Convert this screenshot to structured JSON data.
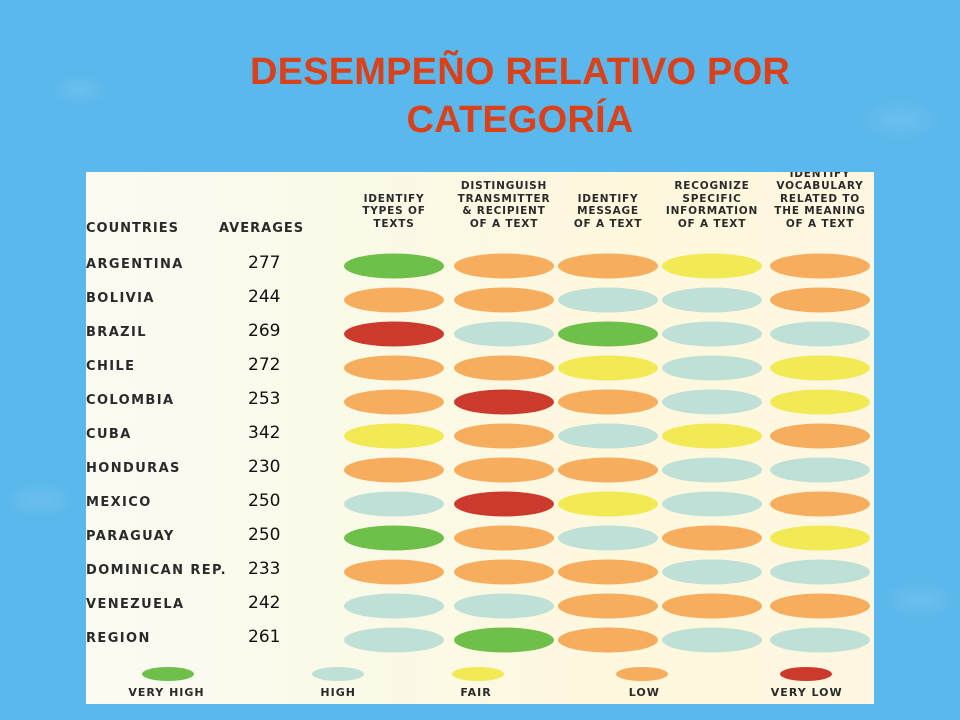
{
  "title_line1": "DESEMPEÑO RELATIVO POR",
  "title_line2": "CATEGORÍA",
  "chart_data": {
    "type": "table",
    "row_header": "COUNTRIES",
    "avg_header": "AVERAGES",
    "columns": [
      "IDENTIFY TYPES OF TEXTS",
      "DISTINGUISH TRANSMITTER & RECIPIENT OF A TEXT",
      "IDENTIFY MESSAGE OF A TEXT",
      "RECOGNIZE SPECIFIC INFORMATION OF A TEXT",
      "IDENTIFY VOCABULARY RELATED TO THE MEANING OF A TEXT"
    ],
    "column_lines": [
      [
        "IDENTIFY",
        "TYPES OF",
        "TEXTS"
      ],
      [
        "DISTINGUISH",
        "TRANSMITTER",
        "& RECIPIENT",
        "OF A TEXT"
      ],
      [
        "IDENTIFY",
        "MESSAGE",
        "OF A TEXT"
      ],
      [
        "RECOGNIZE",
        "SPECIFIC",
        "INFORMATION",
        "OF A TEXT"
      ],
      [
        "IDENTIFY",
        "VOCABULARY",
        "RELATED TO",
        "THE MEANING",
        "OF A TEXT"
      ]
    ],
    "rows": [
      {
        "country": "ARGENTINA",
        "average": "277",
        "levels": [
          "very_high",
          "low",
          "low",
          "fair",
          "low"
        ]
      },
      {
        "country": "BOLIVIA",
        "average": "244",
        "levels": [
          "low",
          "low",
          "high",
          "high",
          "low"
        ]
      },
      {
        "country": "BRAZIL",
        "average": "269",
        "levels": [
          "very_low",
          "high",
          "very_high",
          "high",
          "high"
        ]
      },
      {
        "country": "CHILE",
        "average": "272",
        "levels": [
          "low",
          "low",
          "fair",
          "high",
          "fair"
        ]
      },
      {
        "country": "COLOMBIA",
        "average": "253",
        "levels": [
          "low",
          "very_low",
          "low",
          "high",
          "fair"
        ]
      },
      {
        "country": "CUBA",
        "average": "342",
        "levels": [
          "fair",
          "low",
          "high",
          "fair",
          "low"
        ]
      },
      {
        "country": "HONDURAS",
        "average": "230",
        "levels": [
          "low",
          "low",
          "low",
          "high",
          "high"
        ]
      },
      {
        "country": "MEXICO",
        "average": "250",
        "levels": [
          "high",
          "very_low",
          "fair",
          "high",
          "low"
        ]
      },
      {
        "country": "PARAGUAY",
        "average": "250",
        "levels": [
          "very_high",
          "low",
          "high",
          "low",
          "fair"
        ]
      },
      {
        "country": "DOMINICAN REP.",
        "average": "233",
        "levels": [
          "low",
          "low",
          "low",
          "high",
          "high"
        ]
      },
      {
        "country": "VENEZUELA",
        "average": "242",
        "levels": [
          "high",
          "high",
          "low",
          "low",
          "low"
        ]
      },
      {
        "country": "REGION",
        "average": "261",
        "levels": [
          "high",
          "very_high",
          "low",
          "high",
          "high"
        ]
      }
    ],
    "legend": [
      {
        "key": "very_high",
        "label": "VERY HIGH",
        "color": "#6ec04a"
      },
      {
        "key": "high",
        "label": "HIGH",
        "color": "#bfe0d6"
      },
      {
        "key": "fair",
        "label": "FAIR",
        "color": "#f2ea55"
      },
      {
        "key": "low",
        "label": "LOW",
        "color": "#f7ad5e"
      },
      {
        "key": "very_low",
        "label": "VERY LOW",
        "color": "#cc3a2e"
      }
    ]
  }
}
